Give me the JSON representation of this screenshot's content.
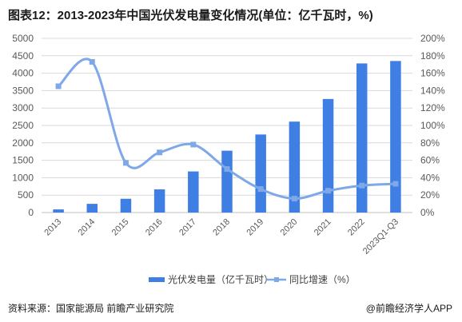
{
  "header": {
    "title": "图表12：2013-2023年中国光伏发电量变化情况(单位：亿千瓦时，%)"
  },
  "footer": {
    "source": "资料来源：国家能源局 前瞻产业研究院",
    "credit": "@前瞻经济学人APP"
  },
  "colors": {
    "bar": "#3F7FE4",
    "line": "#7FA8E8",
    "grid": "#D9D9D9"
  },
  "chart_data": {
    "type": "bar",
    "title": "图表12：2013-2023年中国光伏发电量变化情况(单位：亿千瓦时，%)",
    "categories": [
      "2013",
      "2014",
      "2015",
      "2016",
      "2017",
      "2018",
      "2019",
      "2020",
      "2021",
      "2022",
      "2023Q1-Q3"
    ],
    "series": [
      {
        "name": "光伏发电量（亿千瓦时）",
        "type": "bar",
        "axis": "left",
        "values": [
          90,
          250,
          395,
          665,
          1180,
          1775,
          2240,
          2610,
          3260,
          4280,
          4350
        ]
      },
      {
        "name": "同比增速（%）",
        "type": "line",
        "axis": "right",
        "smooth": true,
        "marker": "square",
        "values": [
          145,
          173,
          57,
          69,
          78,
          50,
          27,
          16,
          25,
          31,
          33
        ]
      }
    ],
    "y_left": {
      "min": 0,
      "max": 5000,
      "step": 500,
      "ticks": [
        "0",
        "500",
        "1000",
        "1500",
        "2000",
        "2500",
        "3000",
        "3500",
        "4000",
        "4500",
        "5000"
      ]
    },
    "y_right": {
      "min": 0,
      "max": 200,
      "step": 20,
      "ticks": [
        "0%",
        "20%",
        "40%",
        "60%",
        "80%",
        "100%",
        "120%",
        "140%",
        "160%",
        "180%",
        "200%"
      ]
    },
    "grid": true,
    "legend": "bottom-center"
  }
}
